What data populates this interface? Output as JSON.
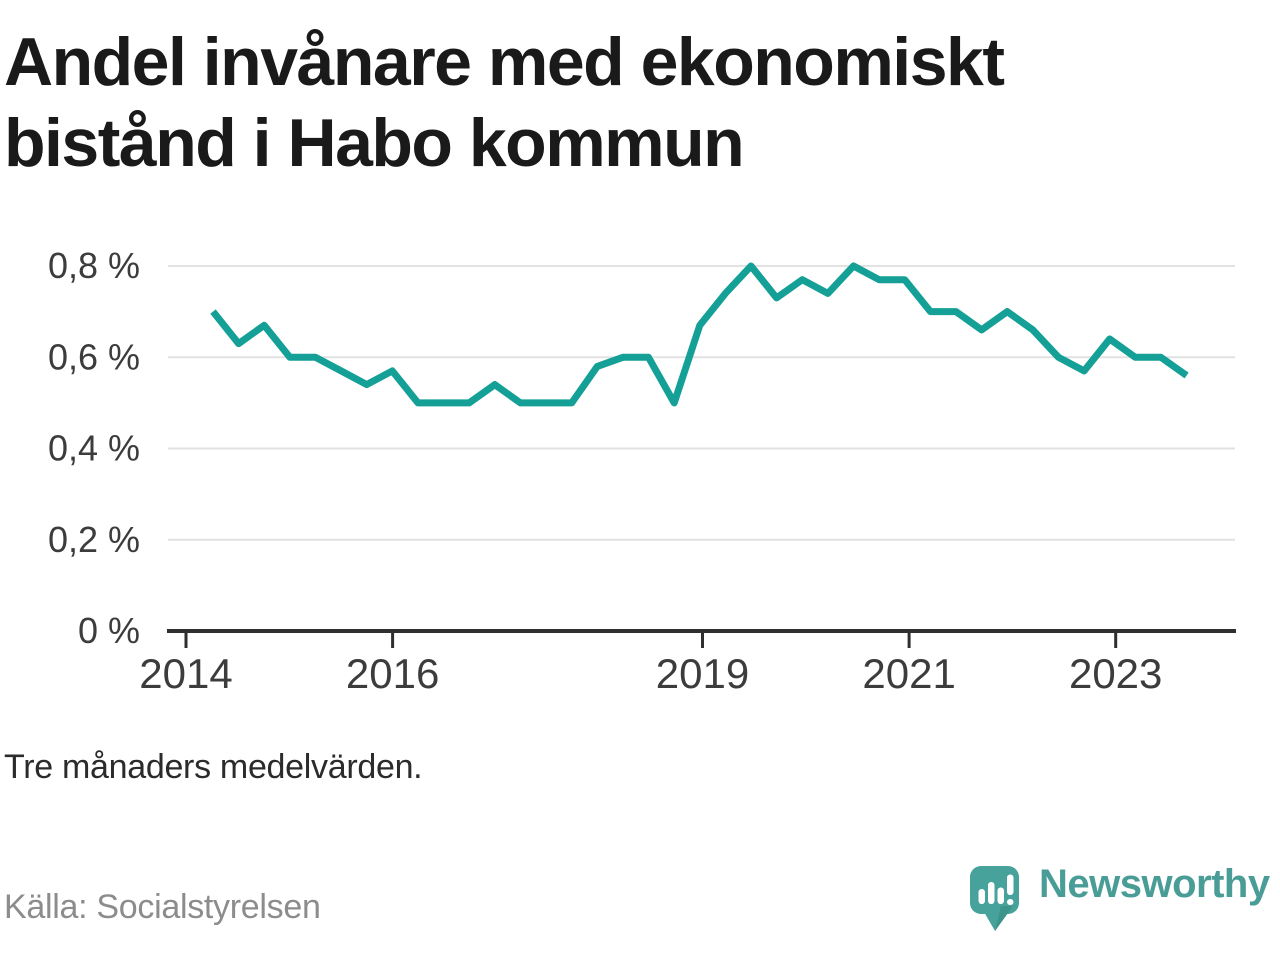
{
  "title": {
    "line1": "Andel invånare med ekonomiskt",
    "line2": "bistånd i Habo kommun"
  },
  "footnote": {
    "text": "Tre månaders medelvärden."
  },
  "source": {
    "text": "Källa: Socialstyrelsen"
  },
  "logo": {
    "text": "Newsworthy",
    "icon": "newsworthy-chart-bubble-icon"
  },
  "colors": {
    "line": "#14a096",
    "grid": "#e2e2e2",
    "axis": "#2f2f2f",
    "axis_label": "#3c3c3c",
    "title": "#1a1a1a",
    "footnote": "#2b2b2b",
    "source": "#8c8c8c",
    "logo_teal": "#4a9d97",
    "logo_icon_teal": "#46a29a",
    "logo_icon_shadow": "#35887f"
  },
  "chart_data": {
    "type": "line",
    "title": "Andel invånare med ekonomiskt bistånd i Habo kommun",
    "unit": "%",
    "x_start": 2014.25,
    "x_step_years": 0.25,
    "values": [
      0.7,
      0.63,
      0.67,
      0.6,
      0.6,
      0.57,
      0.54,
      0.57,
      0.5,
      0.5,
      0.5,
      0.54,
      0.5,
      0.5,
      0.5,
      0.58,
      0.6,
      0.6,
      0.5,
      0.67,
      0.74,
      0.8,
      0.73,
      0.77,
      0.74,
      0.8,
      0.77,
      0.77,
      0.7,
      0.7,
      0.66,
      0.7,
      0.66,
      0.6,
      0.57,
      0.64,
      0.6,
      0.6,
      0.56
    ],
    "y_ticks": [
      {
        "value": 0.0,
        "label": "0 %"
      },
      {
        "value": 0.2,
        "label": "0,2 %"
      },
      {
        "value": 0.4,
        "label": "0,4 %"
      },
      {
        "value": 0.6,
        "label": "0,6 %"
      },
      {
        "value": 0.8,
        "label": "0,8 %"
      }
    ],
    "x_ticks": [
      {
        "value": 2014,
        "label": "2014"
      },
      {
        "value": 2016,
        "label": "2016"
      },
      {
        "value": 2019,
        "label": "2019"
      },
      {
        "value": 2021,
        "label": "2021"
      },
      {
        "value": 2023,
        "label": "2023"
      }
    ],
    "ylim": [
      0,
      0.8
    ],
    "grid": true,
    "legend": "none"
  }
}
